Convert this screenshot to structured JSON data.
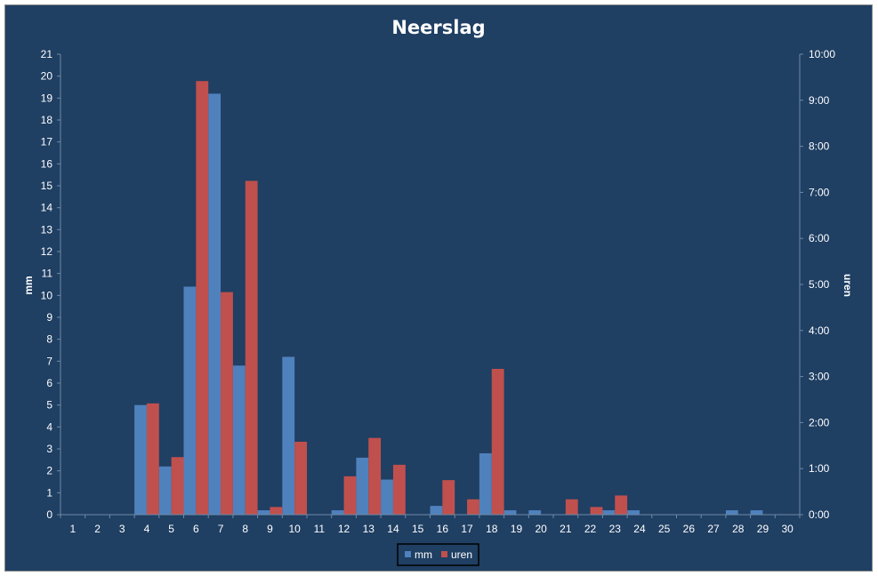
{
  "chart_data": {
    "type": "bar",
    "title": "Neerslag",
    "ylabel": "mm",
    "y2label": "uren",
    "categories": [
      "1",
      "2",
      "3",
      "4",
      "5",
      "6",
      "7",
      "8",
      "9",
      "10",
      "11",
      "12",
      "13",
      "14",
      "15",
      "16",
      "17",
      "18",
      "19",
      "20",
      "21",
      "22",
      "23",
      "24",
      "25",
      "26",
      "27",
      "28",
      "29",
      "30"
    ],
    "ylim": [
      0,
      21
    ],
    "y2lim": [
      0,
      600
    ],
    "y_ticks": [
      "0",
      "1",
      "2",
      "3",
      "4",
      "5",
      "6",
      "7",
      "8",
      "9",
      "10",
      "11",
      "12",
      "13",
      "14",
      "15",
      "16",
      "17",
      "18",
      "19",
      "20",
      "21"
    ],
    "y2_ticks": [
      "0:00",
      "1:00",
      "2:00",
      "3:00",
      "4:00",
      "5:00",
      "6:00",
      "7:00",
      "8:00",
      "9:00",
      "10:00"
    ],
    "grid": false,
    "legend_position": "bottom",
    "series": [
      {
        "name": "mm",
        "axis": "left",
        "color": "#4f81bd",
        "values": [
          0,
          0,
          0,
          5.0,
          2.2,
          10.4,
          19.2,
          6.8,
          0.2,
          7.2,
          0,
          0.2,
          2.6,
          1.6,
          0,
          0.4,
          0,
          2.8,
          0.2,
          0.2,
          0,
          0,
          0.2,
          0.2,
          0,
          0,
          0,
          0.2,
          0.2,
          0
        ]
      },
      {
        "name": "uren",
        "axis": "right",
        "color": "#c0504d",
        "values": [
          0,
          0,
          0,
          145,
          75,
          565,
          290,
          435,
          10,
          95,
          0,
          50,
          100,
          65,
          0,
          45,
          20,
          190,
          0,
          0,
          20,
          10,
          25,
          0,
          0,
          0,
          0,
          0,
          0,
          0
        ]
      }
    ]
  }
}
